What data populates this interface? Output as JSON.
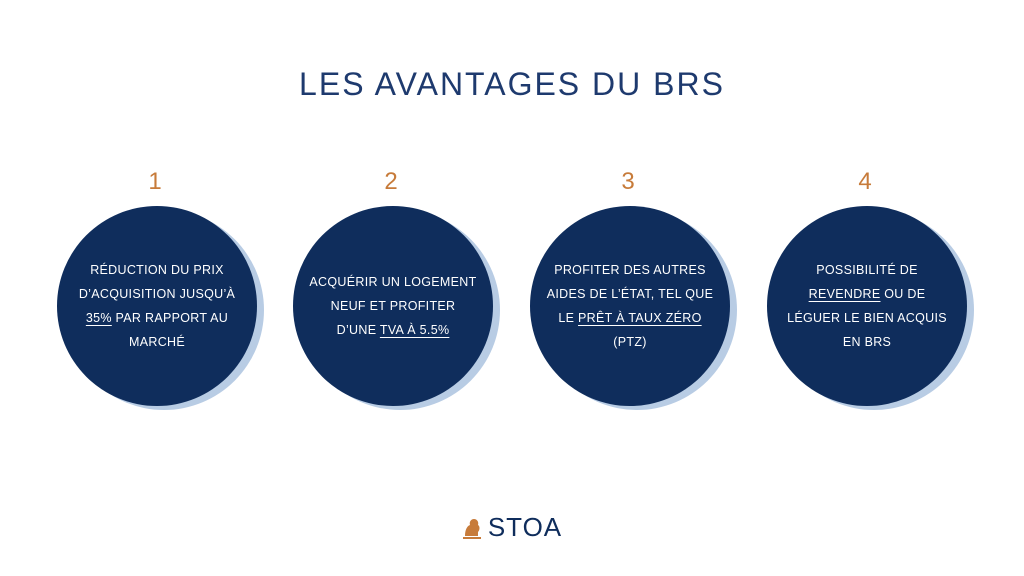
{
  "title": "LES AVANTAGES DU BRS",
  "cards": [
    {
      "number": "1",
      "parts": [
        "RÉDUCTION DU PRIX D’ACQUISITION JUSQU’À ",
        "35%",
        " PAR RAPPORT AU MARCHÉ",
        "",
        ""
      ]
    },
    {
      "number": "2",
      "parts": [
        "ACQUÉRIR UN LOGEMENT NEUF ET PROFITER D’UNE ",
        "TVA À 5.5%",
        "",
        "",
        ""
      ]
    },
    {
      "number": "3",
      "parts": [
        "PROFITER DES AUTRES AIDES DE L’ÉTAT, TEL QUE LE ",
        "PRÊT À TAUX ZÉRO",
        " (PTZ)",
        "",
        ""
      ]
    },
    {
      "number": "4",
      "parts": [
        "POSSIBILITÉ DE ",
        "REVENDRE",
        " OU DE LÉGUER LE BIEN ACQUIS EN BRS",
        "",
        ""
      ]
    }
  ],
  "logo": {
    "text": "STOA",
    "icon": "lion-icon"
  },
  "colors": {
    "navy": "#0f2d5c",
    "accent": "#c77b3a",
    "ring": "#b8cce4"
  }
}
